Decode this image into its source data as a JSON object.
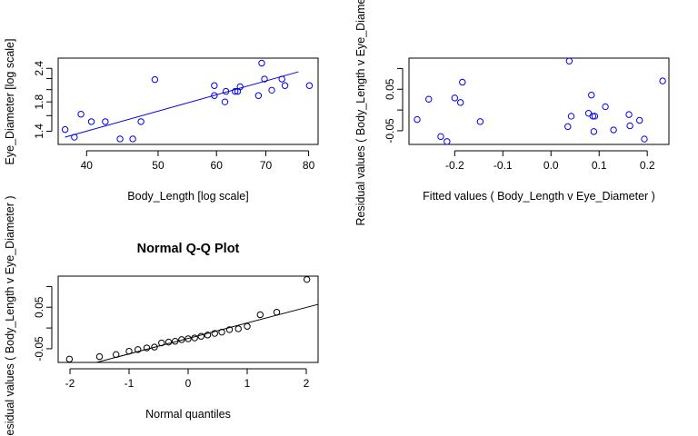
{
  "chart_data": [
    {
      "id": "scatter",
      "type": "scatter",
      "title": "",
      "xlabel": "Body_Length [log scale]",
      "ylabel": "Eye_Diameter [log scale]",
      "xscale": "log",
      "yscale": "log",
      "xlim": [
        36.6,
        82.4
      ],
      "ylim": [
        1.25,
        2.62
      ],
      "xticks": [
        40,
        50,
        60,
        70,
        80
      ],
      "xtick_labels": [
        "40",
        "50",
        "60",
        "70",
        "80"
      ],
      "yticks": [
        1.4,
        1.8,
        2.4
      ],
      "ytick_labels": [
        "1.4",
        "1.8",
        "2.4"
      ],
      "ytick_minor": [
        1.6,
        2.0,
        2.2
      ],
      "points": [
        {
          "x": 37.4,
          "y": 1.42
        },
        {
          "x": 38.5,
          "y": 1.33
        },
        {
          "x": 39.3,
          "y": 1.62
        },
        {
          "x": 40.6,
          "y": 1.52
        },
        {
          "x": 42.4,
          "y": 1.52
        },
        {
          "x": 44.4,
          "y": 1.31
        },
        {
          "x": 46.2,
          "y": 1.31
        },
        {
          "x": 47.4,
          "y": 1.52
        },
        {
          "x": 49.5,
          "y": 2.18
        },
        {
          "x": 59.6,
          "y": 2.07
        },
        {
          "x": 59.6,
          "y": 1.9
        },
        {
          "x": 61.6,
          "y": 1.8
        },
        {
          "x": 61.8,
          "y": 1.97
        },
        {
          "x": 63.6,
          "y": 1.97
        },
        {
          "x": 64.1,
          "y": 1.97
        },
        {
          "x": 64.6,
          "y": 2.05
        },
        {
          "x": 68.4,
          "y": 1.9
        },
        {
          "x": 69.1,
          "y": 2.51
        },
        {
          "x": 69.7,
          "y": 2.19
        },
        {
          "x": 71.3,
          "y": 1.99
        },
        {
          "x": 73.6,
          "y": 2.19
        },
        {
          "x": 74.3,
          "y": 2.07
        },
        {
          "x": 80.2,
          "y": 2.07
        }
      ],
      "fit_line": [
        {
          "x": 37.4,
          "y": 1.33
        },
        {
          "x": 77.5,
          "y": 2.33
        }
      ]
    },
    {
      "id": "residuals",
      "type": "scatter",
      "title": "",
      "xlabel": "Fitted values ( Body_Length  v  Eye_Diameter )",
      "ylabel": "Residual values ( Body_Length  v  Eye_Diameter )",
      "xlim": [
        -0.295,
        0.245
      ],
      "ylim": [
        -0.083,
        0.125
      ],
      "xticks": [
        -0.2,
        -0.1,
        0.0,
        0.1,
        0.2
      ],
      "xtick_labels": [
        "-0.2",
        "-0.1",
        "0.0",
        "0.1",
        "0.2"
      ],
      "yticks": [
        -0.05,
        0.05
      ],
      "ytick_labels": [
        "-0.05",
        "0.05"
      ],
      "ytick_minor": [
        0.0,
        0.1
      ],
      "points": [
        {
          "x": -0.278,
          "y": -0.023
        },
        {
          "x": -0.254,
          "y": 0.026
        },
        {
          "x": -0.229,
          "y": -0.064
        },
        {
          "x": -0.216,
          "y": -0.076
        },
        {
          "x": -0.2,
          "y": 0.029
        },
        {
          "x": -0.188,
          "y": 0.018
        },
        {
          "x": -0.184,
          "y": 0.067
        },
        {
          "x": -0.147,
          "y": -0.028
        },
        {
          "x": 0.035,
          "y": -0.04
        },
        {
          "x": 0.038,
          "y": 0.118
        },
        {
          "x": 0.042,
          "y": -0.015
        },
        {
          "x": 0.078,
          "y": -0.008
        },
        {
          "x": 0.084,
          "y": 0.036
        },
        {
          "x": 0.087,
          "y": -0.015
        },
        {
          "x": 0.091,
          "y": -0.015
        },
        {
          "x": 0.089,
          "y": -0.052
        },
        {
          "x": 0.113,
          "y": 0.008
        },
        {
          "x": 0.13,
          "y": -0.048
        },
        {
          "x": 0.162,
          "y": -0.011
        },
        {
          "x": 0.164,
          "y": -0.038
        },
        {
          "x": 0.184,
          "y": -0.025
        },
        {
          "x": 0.194,
          "y": -0.07
        },
        {
          "x": 0.232,
          "y": 0.07
        }
      ]
    },
    {
      "id": "qqplot",
      "type": "scatter",
      "title": "Normal Q-Q Plot",
      "xlabel": "Normal quantiles",
      "ylabel": "Residual values ( Body_Length  v  Eye_Diameter )",
      "xlim": [
        -2.2,
        2.2
      ],
      "ylim": [
        -0.083,
        0.125
      ],
      "xticks": [
        -2,
        -1,
        0,
        1,
        2
      ],
      "xtick_labels": [
        "-2",
        "-1",
        "0",
        "1",
        "2"
      ],
      "yticks": [
        -0.05,
        0.05
      ],
      "ytick_labels": [
        "-0.05",
        "0.05"
      ],
      "ytick_minor": [
        0.0,
        0.1
      ],
      "points": [
        {
          "x": -2.01,
          "y": -0.075
        },
        {
          "x": -1.5,
          "y": -0.069
        },
        {
          "x": -1.22,
          "y": -0.064
        },
        {
          "x": -1.0,
          "y": -0.056
        },
        {
          "x": -0.85,
          "y": -0.052
        },
        {
          "x": -0.7,
          "y": -0.048
        },
        {
          "x": -0.57,
          "y": -0.046
        },
        {
          "x": -0.45,
          "y": -0.036
        },
        {
          "x": -0.33,
          "y": -0.034
        },
        {
          "x": -0.22,
          "y": -0.032
        },
        {
          "x": -0.11,
          "y": -0.028
        },
        {
          "x": 0.0,
          "y": -0.026
        },
        {
          "x": 0.11,
          "y": -0.024
        },
        {
          "x": 0.22,
          "y": -0.02
        },
        {
          "x": 0.33,
          "y": -0.017
        },
        {
          "x": 0.45,
          "y": -0.013
        },
        {
          "x": 0.57,
          "y": -0.01
        },
        {
          "x": 0.7,
          "y": -0.004
        },
        {
          "x": 0.85,
          "y": -0.002
        },
        {
          "x": 1.0,
          "y": 0.004
        },
        {
          "x": 1.22,
          "y": 0.032
        },
        {
          "x": 1.5,
          "y": 0.038
        },
        {
          "x": 2.01,
          "y": 0.117
        }
      ],
      "ref_line": [
        {
          "x": -1.55,
          "y": -0.083
        },
        {
          "x": 2.2,
          "y": 0.057
        }
      ]
    }
  ]
}
